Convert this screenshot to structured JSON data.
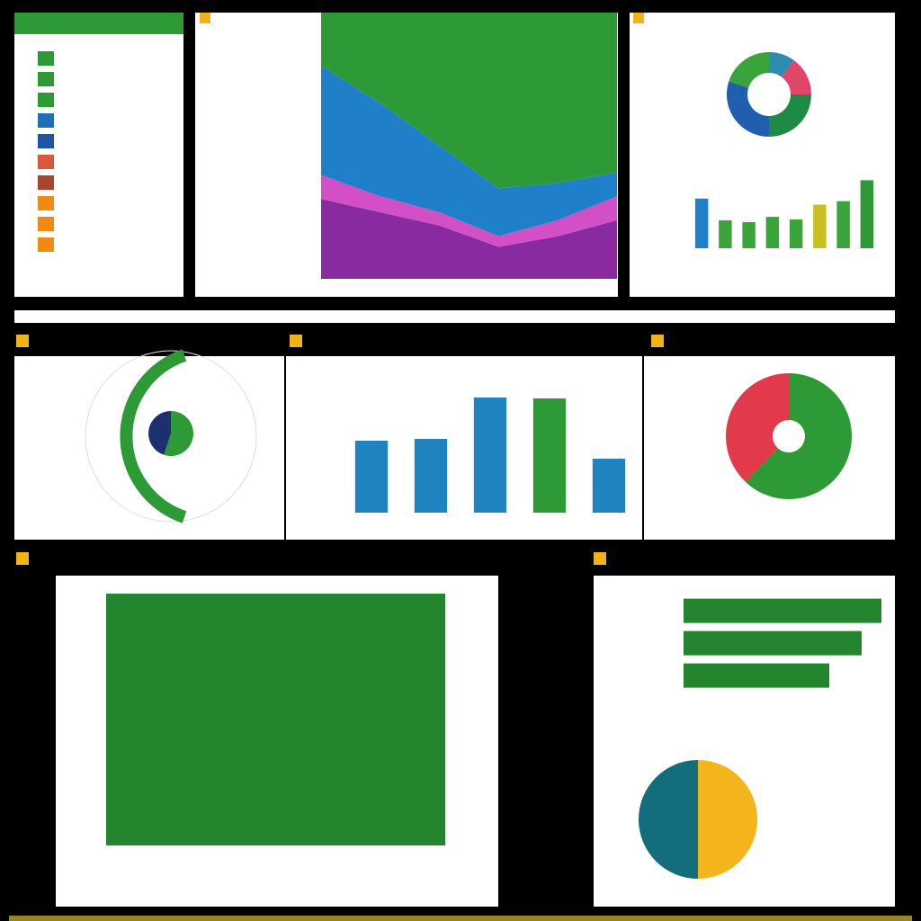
{
  "legend_colors": [
    "#2e9a35",
    "#2e9a35",
    "#2e9a35",
    "#1f6fb5",
    "#1f55a8",
    "#d8583a",
    "#a8462d",
    "#ef8a12",
    "#ef8a12",
    "#ef8a12"
  ],
  "charts": [
    {
      "type": "area",
      "x": [
        0,
        1,
        2,
        3,
        4,
        5
      ],
      "xlim": [
        0,
        5
      ],
      "ylim": [
        0,
        100
      ],
      "series": [
        {
          "color": "#8a2aa0",
          "values": [
            30,
            25,
            20,
            12,
            16,
            22
          ]
        },
        {
          "color": "#d24fc8",
          "values": [
            9,
            6,
            5,
            4,
            6,
            9
          ]
        },
        {
          "color": "#1f7fc8",
          "values": [
            41,
            35,
            25,
            18,
            14,
            9
          ]
        },
        {
          "color": "#2e9a35",
          "values": [
            20,
            34,
            50,
            66,
            64,
            60
          ]
        }
      ]
    },
    {
      "type": "donut",
      "values": [
        10,
        15,
        25,
        30,
        20
      ],
      "colors": [
        "#2e8ab0",
        "#e2456a",
        "#1e8a45",
        "#1f5fae",
        "#3aa43a"
      ]
    },
    {
      "type": "bar",
      "values": [
        57,
        32,
        30,
        36,
        33,
        50,
        54,
        78
      ],
      "ylim": [
        0,
        130
      ],
      "colors": [
        "#1f7fc8",
        "#3aa43a",
        "#3aa43a",
        "#3aa43a",
        "#3aa43a",
        "#c8c020",
        "#3aa43a",
        "#2e9a35"
      ]
    },
    {
      "type": "pie",
      "values": [
        55,
        45
      ],
      "colors": [
        "#2e9a35",
        "#1c2f6e"
      ]
    },
    {
      "type": "bar",
      "values": [
        80,
        82,
        128,
        127,
        60
      ],
      "ylim": [
        0,
        160
      ],
      "colors": [
        "#1f83c0",
        "#1f83c0",
        "#1f83c0",
        "#2e9a35",
        "#1f83c0"
      ]
    },
    {
      "type": "donut",
      "values": [
        62,
        38
      ],
      "colors": [
        "#2e9a35",
        "#e23a4a"
      ]
    },
    {
      "type": "bar",
      "values": [
        100
      ],
      "ylim": [
        0,
        100
      ],
      "colors": [
        "#23862e"
      ]
    },
    {
      "type": "hbar",
      "values": [
        220,
        198,
        162
      ],
      "xlim": [
        0,
        230
      ],
      "colors": [
        "#23862e",
        "#23862e",
        "#23862e"
      ]
    },
    {
      "type": "pie",
      "values": [
        50,
        50
      ],
      "colors": [
        "#f4b51c",
        "#136d7a"
      ]
    }
  ]
}
